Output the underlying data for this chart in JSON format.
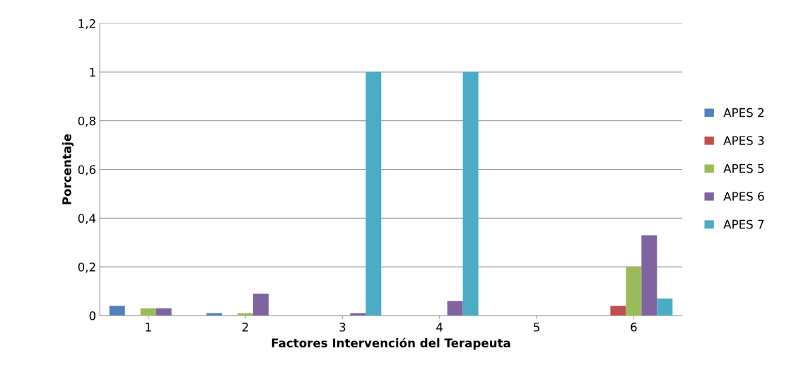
{
  "chart_data": {
    "type": "bar",
    "xlabel": "Factores Intervención del Terapeuta",
    "ylabel": "Porcentaje",
    "categories": [
      "1",
      "2",
      "3",
      "4",
      "5",
      "6"
    ],
    "series": [
      {
        "name": "APES 2",
        "color": "#4f81bd",
        "values": [
          0.04,
          0.01,
          0,
          0,
          0,
          0
        ]
      },
      {
        "name": "APES 3",
        "color": "#c0504d",
        "values": [
          0,
          0,
          0,
          0,
          0,
          0.04
        ]
      },
      {
        "name": "APES 5",
        "color": "#9bbb59",
        "values": [
          0.03,
          0.01,
          0,
          0,
          0,
          0.2
        ]
      },
      {
        "name": "APES 6",
        "color": "#8064a2",
        "values": [
          0.03,
          0.09,
          0.01,
          0.06,
          0,
          0.33
        ]
      },
      {
        "name": "APES 7",
        "color": "#4bacc6",
        "values": [
          0,
          0,
          1,
          1,
          0,
          0.07
        ]
      }
    ],
    "ylim": [
      0,
      1.2
    ],
    "yticks": [
      {
        "value": 0,
        "label": "0"
      },
      {
        "value": 0.2,
        "label": "0,2"
      },
      {
        "value": 0.4,
        "label": "0,4"
      },
      {
        "value": 0.6,
        "label": "0,6"
      },
      {
        "value": 0.8,
        "label": "0,8"
      },
      {
        "value": 1,
        "label": "1"
      },
      {
        "value": 1.2,
        "label": "1,2"
      }
    ],
    "grid": "y",
    "legend": "right"
  }
}
